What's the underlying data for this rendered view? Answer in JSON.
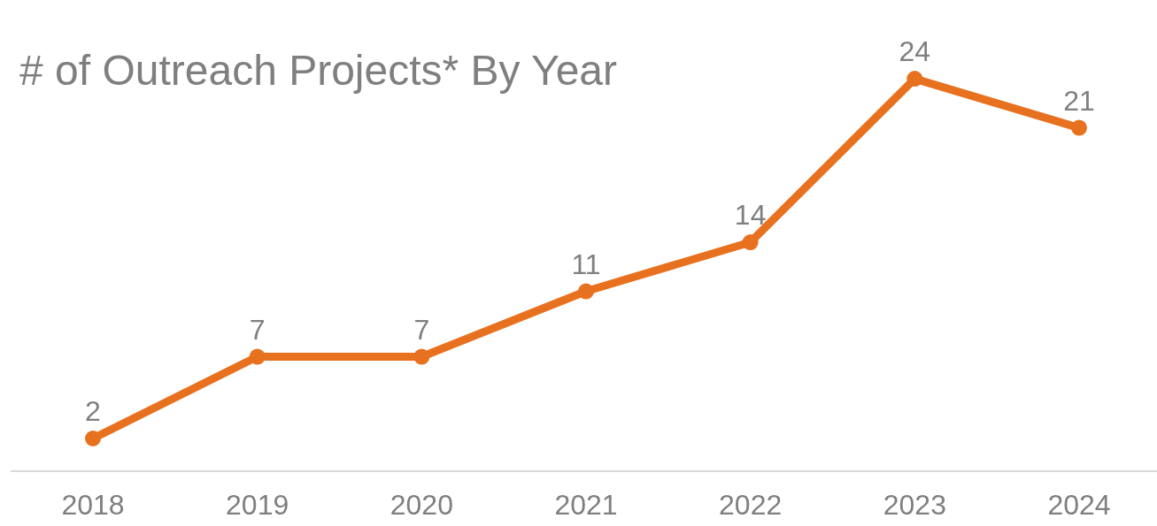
{
  "chart_data": {
    "type": "line",
    "title": "# of Outreach Projects* By Year",
    "categories": [
      "2018",
      "2019",
      "2020",
      "2021",
      "2022",
      "2023",
      "2024"
    ],
    "series": [
      {
        "color": "#e8711f",
        "values": [
          2,
          7,
          7,
          11,
          14,
          24,
          21
        ]
      }
    ],
    "data_labels": true,
    "marker": "circle",
    "line_style": "solid",
    "legend": false,
    "tick_labels": "x"
  }
}
